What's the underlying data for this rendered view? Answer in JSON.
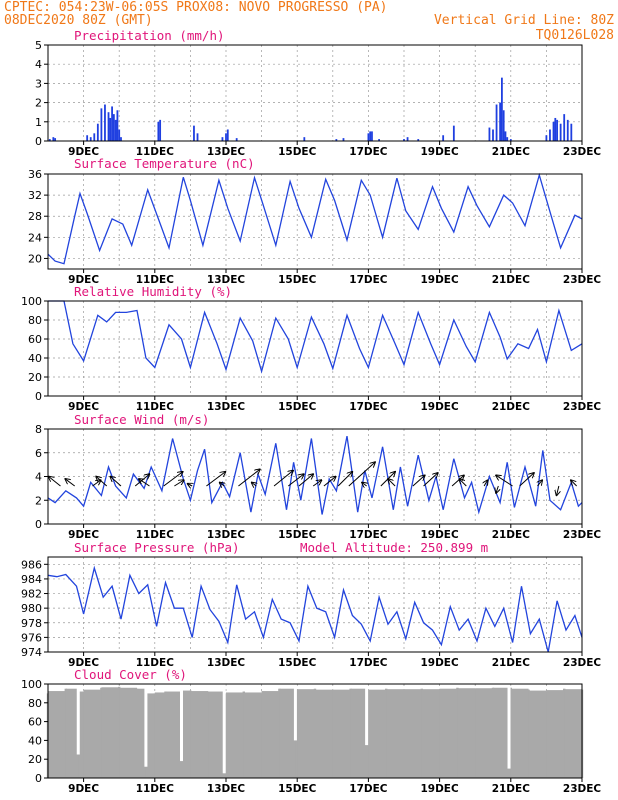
{
  "header": {
    "left_line1": "CPTEC:   054:23W-06:05S   PROX08: NOVO PROGRESSO (PA)",
    "left_line2": "08DEC2020 80Z (GMT)",
    "right_line2": "Vertical Grid Line: 80Z",
    "right_line3": "TQ0126L028"
  },
  "colors": {
    "header": "#f07818",
    "panel_title": "#e0157a",
    "series": "#2244dd",
    "precip_bar": "#1f3fe0",
    "cloud_bar": "#a9a9a9"
  },
  "chart_data": [
    {
      "type": "bar",
      "title": "Precipitation (mm/h)",
      "ylim": [
        0,
        5
      ],
      "yticks": [
        0,
        1,
        2,
        3,
        4,
        5
      ],
      "xticks": [
        "9DEC",
        "11DEC",
        "13DEC",
        "15DEC",
        "17DEC",
        "19DEC",
        "21DEC",
        "23DEC"
      ],
      "grid": true,
      "x": [
        8.05,
        8.15,
        8.2,
        9.1,
        9.2,
        9.3,
        9.4,
        9.5,
        9.6,
        9.7,
        9.75,
        9.8,
        9.85,
        9.9,
        9.95,
        10.0,
        10.05,
        11.1,
        11.15,
        12.1,
        12.2,
        12.9,
        13.0,
        13.05,
        13.3,
        15.2,
        16.1,
        16.3,
        17.0,
        17.05,
        17.1,
        17.3,
        18.0,
        18.1,
        18.4,
        19.1,
        19.4,
        20.4,
        20.5,
        20.6,
        20.7,
        20.75,
        20.8,
        20.85,
        20.9,
        21.0,
        22.0,
        22.1,
        22.2,
        22.25,
        22.3,
        22.4,
        22.5,
        22.6,
        22.7
      ],
      "values": [
        0.1,
        0.2,
        0.15,
        0.3,
        0.2,
        0.4,
        0.9,
        1.7,
        1.9,
        1.5,
        1.2,
        1.8,
        1.4,
        1.1,
        1.6,
        0.6,
        0.2,
        1.0,
        1.1,
        0.8,
        0.4,
        0.2,
        0.4,
        0.6,
        0.15,
        0.2,
        0.1,
        0.15,
        0.4,
        0.5,
        0.5,
        0.1,
        0.1,
        0.2,
        0.1,
        0.3,
        0.8,
        0.7,
        0.6,
        1.9,
        2.0,
        3.3,
        1.6,
        0.5,
        0.2,
        0.1,
        0.3,
        0.6,
        1.0,
        1.2,
        1.1,
        0.9,
        1.4,
        1.1,
        0.9
      ]
    },
    {
      "type": "line",
      "title": "Surface Temperature (nC)",
      "ylim": [
        18,
        36
      ],
      "yticks": [
        20,
        24,
        28,
        32,
        36
      ],
      "xticks": [
        "9DEC",
        "11DEC",
        "13DEC",
        "15DEC",
        "17DEC",
        "19DEC",
        "21DEC",
        "23DEC"
      ],
      "grid": true,
      "series": [
        {
          "x": [
            8.0,
            8.2,
            8.45,
            8.75,
            8.9,
            9.1,
            9.45,
            9.8,
            10.1,
            10.35,
            10.8,
            11.1,
            11.4,
            11.8,
            12.0,
            12.35,
            12.8,
            13.05,
            13.4,
            13.8,
            14.05,
            14.4,
            14.8,
            15.05,
            15.4,
            15.8,
            16.05,
            16.4,
            16.8,
            17.05,
            17.4,
            17.8,
            18.05,
            18.4,
            18.8,
            19.05,
            19.4,
            19.8,
            20.05,
            20.4,
            20.8,
            21.05,
            21.4,
            21.8,
            22.05,
            22.4,
            22.8,
            23.0
          ],
          "values": [
            20.8,
            19.5,
            19.0,
            28.0,
            32.3,
            28.5,
            21.5,
            27.5,
            26.5,
            22.5,
            33.0,
            27.5,
            22.0,
            35.4,
            31.0,
            22.5,
            34.8,
            29.5,
            23.3,
            35.3,
            30.0,
            22.5,
            34.6,
            29.5,
            24.0,
            35.0,
            31.0,
            23.5,
            34.8,
            32.0,
            24.0,
            35.2,
            29.0,
            25.5,
            33.6,
            29.5,
            25.0,
            33.6,
            30.0,
            26.0,
            32.0,
            30.5,
            26.2,
            35.8,
            30.0,
            22.0,
            28.2,
            27.5
          ]
        }
      ]
    },
    {
      "type": "line",
      "title": "Relative Humidity (%)",
      "ylim": [
        0,
        100
      ],
      "yticks": [
        0,
        20,
        40,
        60,
        80,
        100
      ],
      "xticks": [
        "9DEC",
        "11DEC",
        "13DEC",
        "15DEC",
        "17DEC",
        "19DEC",
        "21DEC",
        "23DEC"
      ],
      "grid": true,
      "series": [
        {
          "x": [
            8.0,
            8.45,
            8.7,
            9.0,
            9.4,
            9.65,
            9.9,
            10.2,
            10.5,
            10.75,
            11.0,
            11.4,
            11.75,
            12.0,
            12.4,
            12.75,
            13.0,
            13.4,
            13.75,
            14.0,
            14.4,
            14.75,
            15.0,
            15.4,
            15.75,
            16.0,
            16.4,
            16.75,
            17.0,
            17.4,
            17.75,
            18.0,
            18.4,
            18.75,
            19.0,
            19.4,
            19.75,
            20.0,
            20.4,
            20.7,
            20.9,
            21.2,
            21.5,
            21.75,
            22.0,
            22.35,
            22.7,
            23.0
          ],
          "values": [
            100,
            100,
            55,
            37,
            85,
            78,
            88,
            88,
            90,
            40,
            30,
            75,
            60,
            30,
            88,
            55,
            28,
            82,
            58,
            26,
            82,
            60,
            30,
            83,
            55,
            29,
            85,
            50,
            30,
            85,
            55,
            33,
            88,
            55,
            33,
            80,
            52,
            36,
            88,
            62,
            39,
            55,
            50,
            70,
            36,
            90,
            48,
            55
          ]
        }
      ]
    },
    {
      "type": "line",
      "title": "Surface Wind (m/s)",
      "ylim": [
        0,
        8
      ],
      "yticks": [
        0,
        2,
        4,
        6,
        8
      ],
      "xticks": [
        "9DEC",
        "11DEC",
        "13DEC",
        "15DEC",
        "17DEC",
        "19DEC",
        "21DEC",
        "23DEC"
      ],
      "grid": true,
      "series": [
        {
          "x": [
            8.0,
            8.2,
            8.5,
            8.8,
            9.0,
            9.2,
            9.5,
            9.7,
            9.9,
            10.2,
            10.4,
            10.7,
            10.9,
            11.2,
            11.5,
            11.8,
            12.0,
            12.2,
            12.4,
            12.6,
            12.9,
            13.1,
            13.4,
            13.7,
            13.9,
            14.1,
            14.4,
            14.7,
            14.9,
            15.1,
            15.4,
            15.7,
            15.9,
            16.1,
            16.4,
            16.7,
            16.9,
            17.1,
            17.4,
            17.7,
            17.9,
            18.1,
            18.4,
            18.7,
            18.9,
            19.1,
            19.4,
            19.7,
            19.9,
            20.1,
            20.4,
            20.7,
            20.9,
            21.1,
            21.4,
            21.7,
            21.9,
            22.1,
            22.4,
            22.7,
            22.9,
            23.0
          ],
          "values": [
            2.2,
            1.8,
            2.8,
            2.2,
            1.5,
            3.5,
            2.4,
            4.8,
            3.2,
            2.2,
            4.2,
            3.0,
            4.8,
            2.8,
            7.2,
            3.8,
            2.0,
            4.5,
            6.3,
            1.8,
            3.5,
            2.3,
            6.0,
            1.0,
            4.2,
            2.5,
            6.8,
            1.2,
            5.2,
            2.0,
            7.2,
            0.8,
            3.8,
            2.8,
            7.4,
            1.0,
            4.5,
            2.2,
            6.5,
            1.2,
            4.8,
            1.5,
            5.8,
            2.0,
            4.0,
            1.2,
            5.5,
            2.2,
            3.5,
            1.0,
            4.0,
            1.8,
            5.2,
            1.4,
            4.8,
            1.5,
            6.2,
            2.0,
            1.2,
            3.5,
            1.5,
            1.8
          ]
        }
      ],
      "wind_vectors": [
        {
          "x": 8.35,
          "u": -1.0,
          "v": 0.8
        },
        {
          "x": 8.75,
          "u": -0.8,
          "v": 0.6
        },
        {
          "x": 9.25,
          "u": 0.7,
          "v": 0.5
        },
        {
          "x": 9.65,
          "u": -0.9,
          "v": 0.8
        },
        {
          "x": 10.05,
          "u": -0.9,
          "v": 0.8
        },
        {
          "x": 10.45,
          "u": 1.2,
          "v": 1.0
        },
        {
          "x": 10.85,
          "u": -0.9,
          "v": 0.6
        },
        {
          "x": 11.25,
          "u": 1.6,
          "v": 1.2
        },
        {
          "x": 11.55,
          "u": 0.8,
          "v": 0.5
        },
        {
          "x": 12.05,
          "u": -0.4,
          "v": 0.2
        },
        {
          "x": 12.45,
          "u": 1.6,
          "v": 1.2
        },
        {
          "x": 12.95,
          "u": -0.4,
          "v": 0.3
        },
        {
          "x": 13.35,
          "u": 1.8,
          "v": 1.4
        },
        {
          "x": 13.85,
          "u": -0.4,
          "v": 0.3
        },
        {
          "x": 14.35,
          "u": 1.6,
          "v": 1.3
        },
        {
          "x": 14.75,
          "u": 1.3,
          "v": 1.0
        },
        {
          "x": 15.05,
          "u": 1.2,
          "v": 1.0
        },
        {
          "x": 15.45,
          "u": 0.7,
          "v": 0.5
        },
        {
          "x": 15.75,
          "u": 1.0,
          "v": 0.8
        },
        {
          "x": 16.15,
          "u": 1.2,
          "v": 1.2
        },
        {
          "x": 16.45,
          "u": 2.2,
          "v": 2.0
        },
        {
          "x": 16.95,
          "u": -0.4,
          "v": 0.3
        },
        {
          "x": 17.35,
          "u": 1.2,
          "v": 1.2
        },
        {
          "x": 17.75,
          "u": -0.6,
          "v": 0.6
        },
        {
          "x": 18.25,
          "u": 1.0,
          "v": 0.9
        },
        {
          "x": 18.55,
          "u": 1.2,
          "v": 1.1
        },
        {
          "x": 19.35,
          "u": 1.0,
          "v": 0.9
        },
        {
          "x": 19.75,
          "u": -0.6,
          "v": 0.6
        },
        {
          "x": 20.25,
          "u": 0.3,
          "v": 0.5
        },
        {
          "x": 20.65,
          "u": -0.2,
          "v": -0.6
        },
        {
          "x": 21.05,
          "u": -1.4,
          "v": 0.9
        },
        {
          "x": 21.25,
          "u": 1.2,
          "v": 1.1
        },
        {
          "x": 21.75,
          "u": 0.4,
          "v": 0.5
        },
        {
          "x": 22.35,
          "u": -0.2,
          "v": -0.8
        },
        {
          "x": 22.85,
          "u": -0.5,
          "v": 0.5
        }
      ]
    },
    {
      "type": "line",
      "title": "Surface Pressure (hPa)",
      "annotation": "Model Altitude: 250.899 m",
      "ylim": [
        974,
        987
      ],
      "yticks": [
        974,
        976,
        978,
        980,
        982,
        984,
        986
      ],
      "xticks": [
        "9DEC",
        "11DEC",
        "13DEC",
        "15DEC",
        "17DEC",
        "19DEC",
        "21DEC",
        "23DEC"
      ],
      "grid": true,
      "series": [
        {
          "x": [
            8.0,
            8.25,
            8.5,
            8.8,
            9.0,
            9.3,
            9.55,
            9.8,
            10.05,
            10.3,
            10.55,
            10.8,
            11.05,
            11.3,
            11.55,
            11.8,
            12.05,
            12.3,
            12.55,
            12.8,
            13.05,
            13.3,
            13.55,
            13.8,
            14.05,
            14.3,
            14.55,
            14.8,
            15.05,
            15.3,
            15.55,
            15.8,
            16.05,
            16.3,
            16.55,
            16.8,
            17.05,
            17.3,
            17.55,
            17.8,
            18.05,
            18.3,
            18.55,
            18.8,
            19.05,
            19.3,
            19.55,
            19.8,
            20.05,
            20.3,
            20.55,
            20.8,
            21.05,
            21.3,
            21.55,
            21.8,
            22.05,
            22.3,
            22.55,
            22.8,
            23.0
          ],
          "values": [
            984.5,
            984.3,
            984.6,
            983.0,
            979.2,
            985.5,
            981.5,
            983.0,
            978.5,
            984.5,
            982.0,
            983.2,
            977.5,
            983.5,
            980.0,
            980.0,
            976.0,
            983.0,
            979.8,
            978.2,
            975.3,
            983.2,
            978.5,
            979.5,
            976.0,
            981.2,
            978.5,
            978.0,
            975.5,
            983.0,
            980.0,
            979.5,
            976.0,
            982.5,
            979.0,
            977.8,
            975.5,
            981.5,
            977.8,
            979.5,
            975.8,
            980.8,
            978.0,
            977.0,
            975.0,
            980.2,
            977.0,
            978.5,
            975.5,
            980.0,
            977.5,
            980.0,
            975.3,
            983.0,
            976.5,
            978.5,
            974.0,
            981.0,
            977.0,
            979.0,
            976.0
          ]
        }
      ]
    },
    {
      "type": "bar",
      "title": "Cloud Cover (%)",
      "ylim": [
        0,
        100
      ],
      "yticks": [
        0,
        20,
        40,
        60,
        80,
        100
      ],
      "xticks": [
        "9DEC",
        "11DEC",
        "13DEC",
        "15DEC",
        "17DEC",
        "19DEC",
        "21DEC",
        "23DEC"
      ],
      "grid": true,
      "x": [
        8.0,
        8.5,
        8.85,
        9.0,
        9.5,
        10.0,
        10.5,
        10.75,
        11.0,
        11.3,
        11.75,
        12.0,
        12.5,
        12.95,
        13.0,
        13.5,
        14.0,
        14.5,
        14.95,
        15.0,
        15.5,
        16.0,
        16.5,
        16.95,
        17.0,
        17.5,
        18.0,
        18.5,
        19.0,
        19.5,
        20.0,
        20.5,
        20.95,
        21.0,
        21.5,
        22.0,
        22.5,
        23.0
      ],
      "values": [
        90,
        95,
        25,
        92,
        96,
        97,
        95,
        12,
        90,
        92,
        18,
        93,
        92,
        5,
        90,
        92,
        90,
        95,
        40,
        94,
        95,
        93,
        95,
        35,
        93,
        95,
        94,
        95,
        94,
        96,
        95,
        96,
        10,
        96,
        94,
        92,
        95,
        94
      ]
    }
  ]
}
